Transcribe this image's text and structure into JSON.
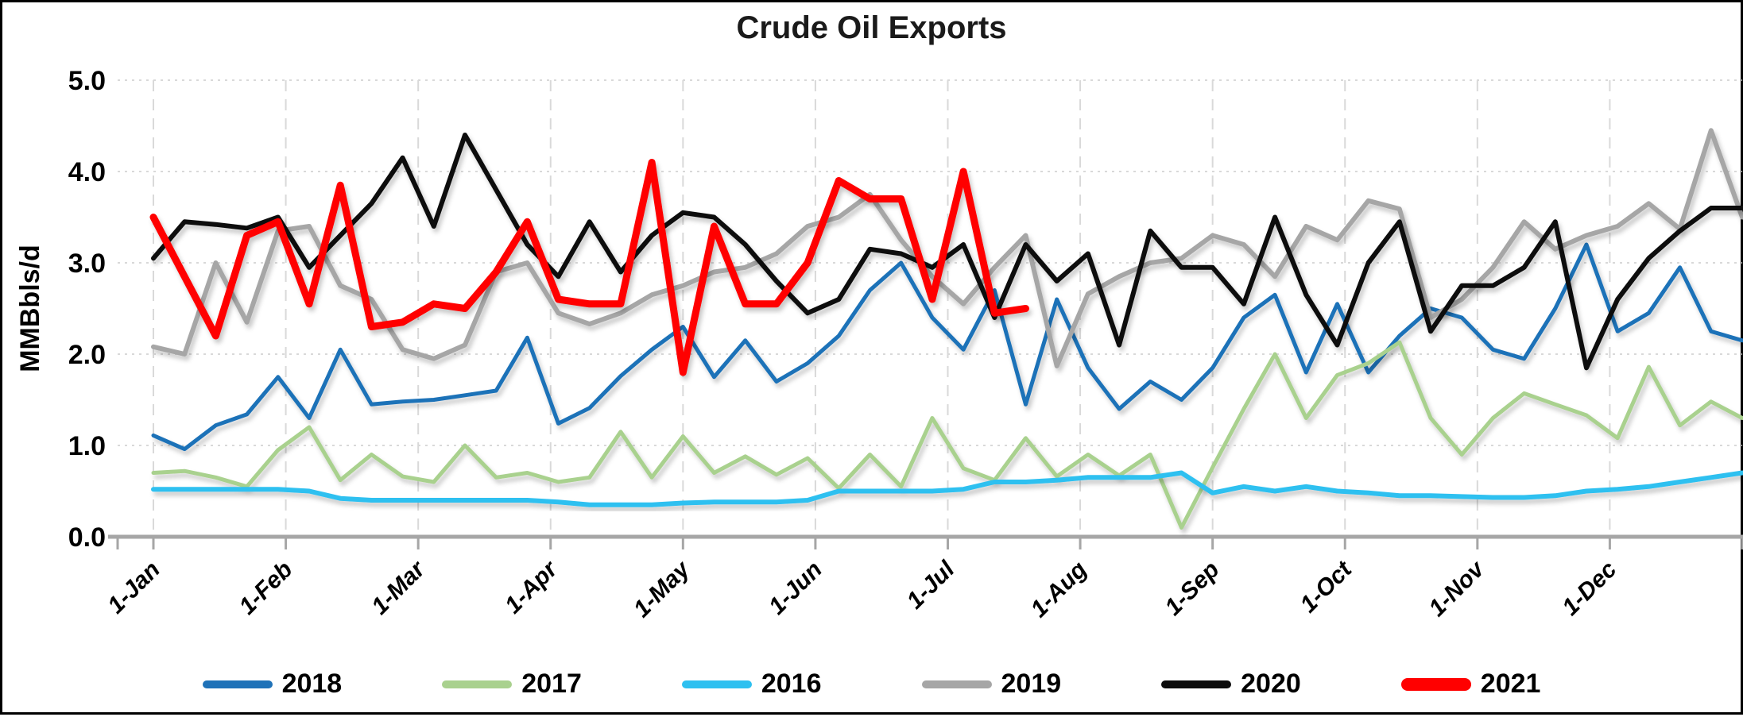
{
  "window": {
    "background": "#FFFFFF",
    "border_color": "#000000"
  },
  "title": "Crude Oil Exports",
  "y_axis": {
    "label": "MMBbls/d",
    "ticks": [
      "5.0",
      "4.0",
      "3.0",
      "2.0",
      "1.0",
      "0.0"
    ],
    "min": 0.0,
    "max": 5.0
  },
  "x_axis": {
    "ticks": [
      "1-Jan",
      "1-Feb",
      "1-Mar",
      "1-Apr",
      "1-May",
      "1-Jun",
      "1-Jul",
      "1-Aug",
      "1-Sep",
      "1-Oct",
      "1-Nov",
      "1-Dec"
    ]
  },
  "legend": [
    {
      "label": "2018",
      "color": "#1F72B8"
    },
    {
      "label": "2017",
      "color": "#A9D18E"
    },
    {
      "label": "2016",
      "color": "#2EC0F0"
    },
    {
      "label": "2019",
      "color": "#A6A6A6"
    },
    {
      "label": "2020",
      "color": "#0D0D0D"
    },
    {
      "label": "2021",
      "color": "#FF0000"
    }
  ],
  "chart_data": {
    "type": "line",
    "title": "Crude Oil Exports",
    "ylabel": "MMBbls/d",
    "ylim": [
      0,
      5
    ],
    "grid": true,
    "legend_position": "bottom",
    "x_description": "weekly observations, 1-Jan through end of December",
    "month_labels": [
      "1-Jan",
      "1-Feb",
      "1-Mar",
      "1-Apr",
      "1-May",
      "1-Jun",
      "1-Jul",
      "1-Aug",
      "1-Sep",
      "1-Oct",
      "1-Nov",
      "1-Dec"
    ],
    "units": "MMBbls/d",
    "series": [
      {
        "name": "2018",
        "color": "#1F72B8",
        "width": 5,
        "values": [
          1.11,
          0.96,
          1.22,
          1.34,
          1.75,
          1.3,
          2.05,
          1.45,
          1.48,
          1.5,
          1.55,
          1.6,
          2.18,
          1.24,
          1.41,
          1.76,
          2.05,
          2.3,
          1.75,
          2.15,
          1.7,
          1.9,
          2.2,
          2.7,
          3.0,
          2.4,
          2.05,
          2.7,
          1.45,
          2.6,
          1.85,
          1.4,
          1.7,
          1.5,
          1.85,
          2.4,
          2.65,
          1.8,
          2.55,
          1.8,
          2.2,
          2.5,
          2.4,
          2.05,
          1.95,
          2.5,
          3.2,
          2.25,
          2.45,
          2.95,
          2.25,
          2.15
        ]
      },
      {
        "name": "2017",
        "color": "#A9D18E",
        "width": 5,
        "values": [
          0.7,
          0.72,
          0.65,
          0.55,
          0.95,
          1.2,
          0.62,
          0.9,
          0.66,
          0.6,
          1.0,
          0.65,
          0.7,
          0.6,
          0.65,
          1.15,
          0.65,
          1.1,
          0.7,
          0.88,
          0.68,
          0.86,
          0.53,
          0.9,
          0.55,
          1.3,
          0.75,
          0.62,
          1.08,
          0.66,
          0.9,
          0.67,
          0.9,
          0.1,
          0.76,
          1.4,
          2.0,
          1.3,
          1.77,
          1.9,
          2.13,
          1.3,
          0.9,
          1.3,
          1.57,
          1.45,
          1.33,
          1.08,
          1.86,
          1.22,
          1.48,
          1.3
        ]
      },
      {
        "name": "2016",
        "color": "#2EC0F0",
        "width": 6,
        "values": [
          0.52,
          0.52,
          0.52,
          0.52,
          0.52,
          0.5,
          0.42,
          0.4,
          0.4,
          0.4,
          0.4,
          0.4,
          0.4,
          0.38,
          0.35,
          0.35,
          0.35,
          0.37,
          0.38,
          0.38,
          0.38,
          0.4,
          0.5,
          0.5,
          0.5,
          0.5,
          0.52,
          0.6,
          0.6,
          0.62,
          0.65,
          0.65,
          0.65,
          0.7,
          0.48,
          0.55,
          0.5,
          0.55,
          0.5,
          0.48,
          0.45,
          0.45,
          0.44,
          0.43,
          0.43,
          0.45,
          0.5,
          0.52,
          0.55,
          0.6,
          0.65,
          0.7
        ]
      },
      {
        "name": "2019",
        "color": "#A6A6A6",
        "width": 6,
        "values": [
          2.08,
          2.0,
          3.0,
          2.35,
          3.35,
          3.4,
          2.75,
          2.6,
          2.05,
          1.95,
          2.1,
          2.9,
          3.0,
          2.45,
          2.33,
          2.45,
          2.65,
          2.75,
          2.9,
          2.95,
          3.1,
          3.4,
          3.5,
          3.75,
          3.25,
          2.85,
          2.55,
          2.95,
          3.3,
          1.87,
          2.66,
          2.85,
          3.0,
          3.05,
          3.3,
          3.2,
          2.85,
          3.4,
          3.25,
          3.68,
          3.59,
          2.4,
          2.6,
          2.95,
          3.45,
          3.15,
          3.3,
          3.4,
          3.65,
          3.37,
          4.45,
          3.5
        ]
      },
      {
        "name": "2020",
        "color": "#0D0D0D",
        "width": 6,
        "values": [
          3.05,
          3.45,
          3.42,
          3.38,
          3.5,
          2.95,
          3.3,
          3.65,
          4.15,
          3.4,
          4.4,
          3.8,
          3.2,
          2.85,
          3.45,
          2.9,
          3.3,
          3.55,
          3.5,
          3.2,
          2.8,
          2.45,
          2.6,
          3.15,
          3.1,
          2.95,
          3.2,
          2.4,
          3.2,
          2.8,
          3.1,
          2.1,
          3.35,
          2.95,
          2.95,
          2.55,
          3.5,
          2.65,
          2.1,
          3.0,
          3.45,
          2.25,
          2.75,
          2.75,
          2.95,
          3.45,
          1.85,
          2.6,
          3.05,
          3.35,
          3.6,
          3.6
        ]
      },
      {
        "name": "2021",
        "color": "#FF0000",
        "width": 9,
        "values": [
          3.5,
          2.85,
          2.2,
          3.3,
          3.45,
          2.55,
          3.85,
          2.3,
          2.35,
          2.55,
          2.5,
          2.9,
          3.45,
          2.6,
          2.55,
          2.55,
          4.1,
          1.8,
          3.4,
          2.55,
          2.55,
          3.0,
          3.9,
          3.7,
          3.7,
          2.6,
          4.0,
          2.45,
          2.5
        ]
      }
    ]
  },
  "style": {
    "gridline_color": "#D9D9D9",
    "axis_line_color": "#A6A6A6"
  }
}
